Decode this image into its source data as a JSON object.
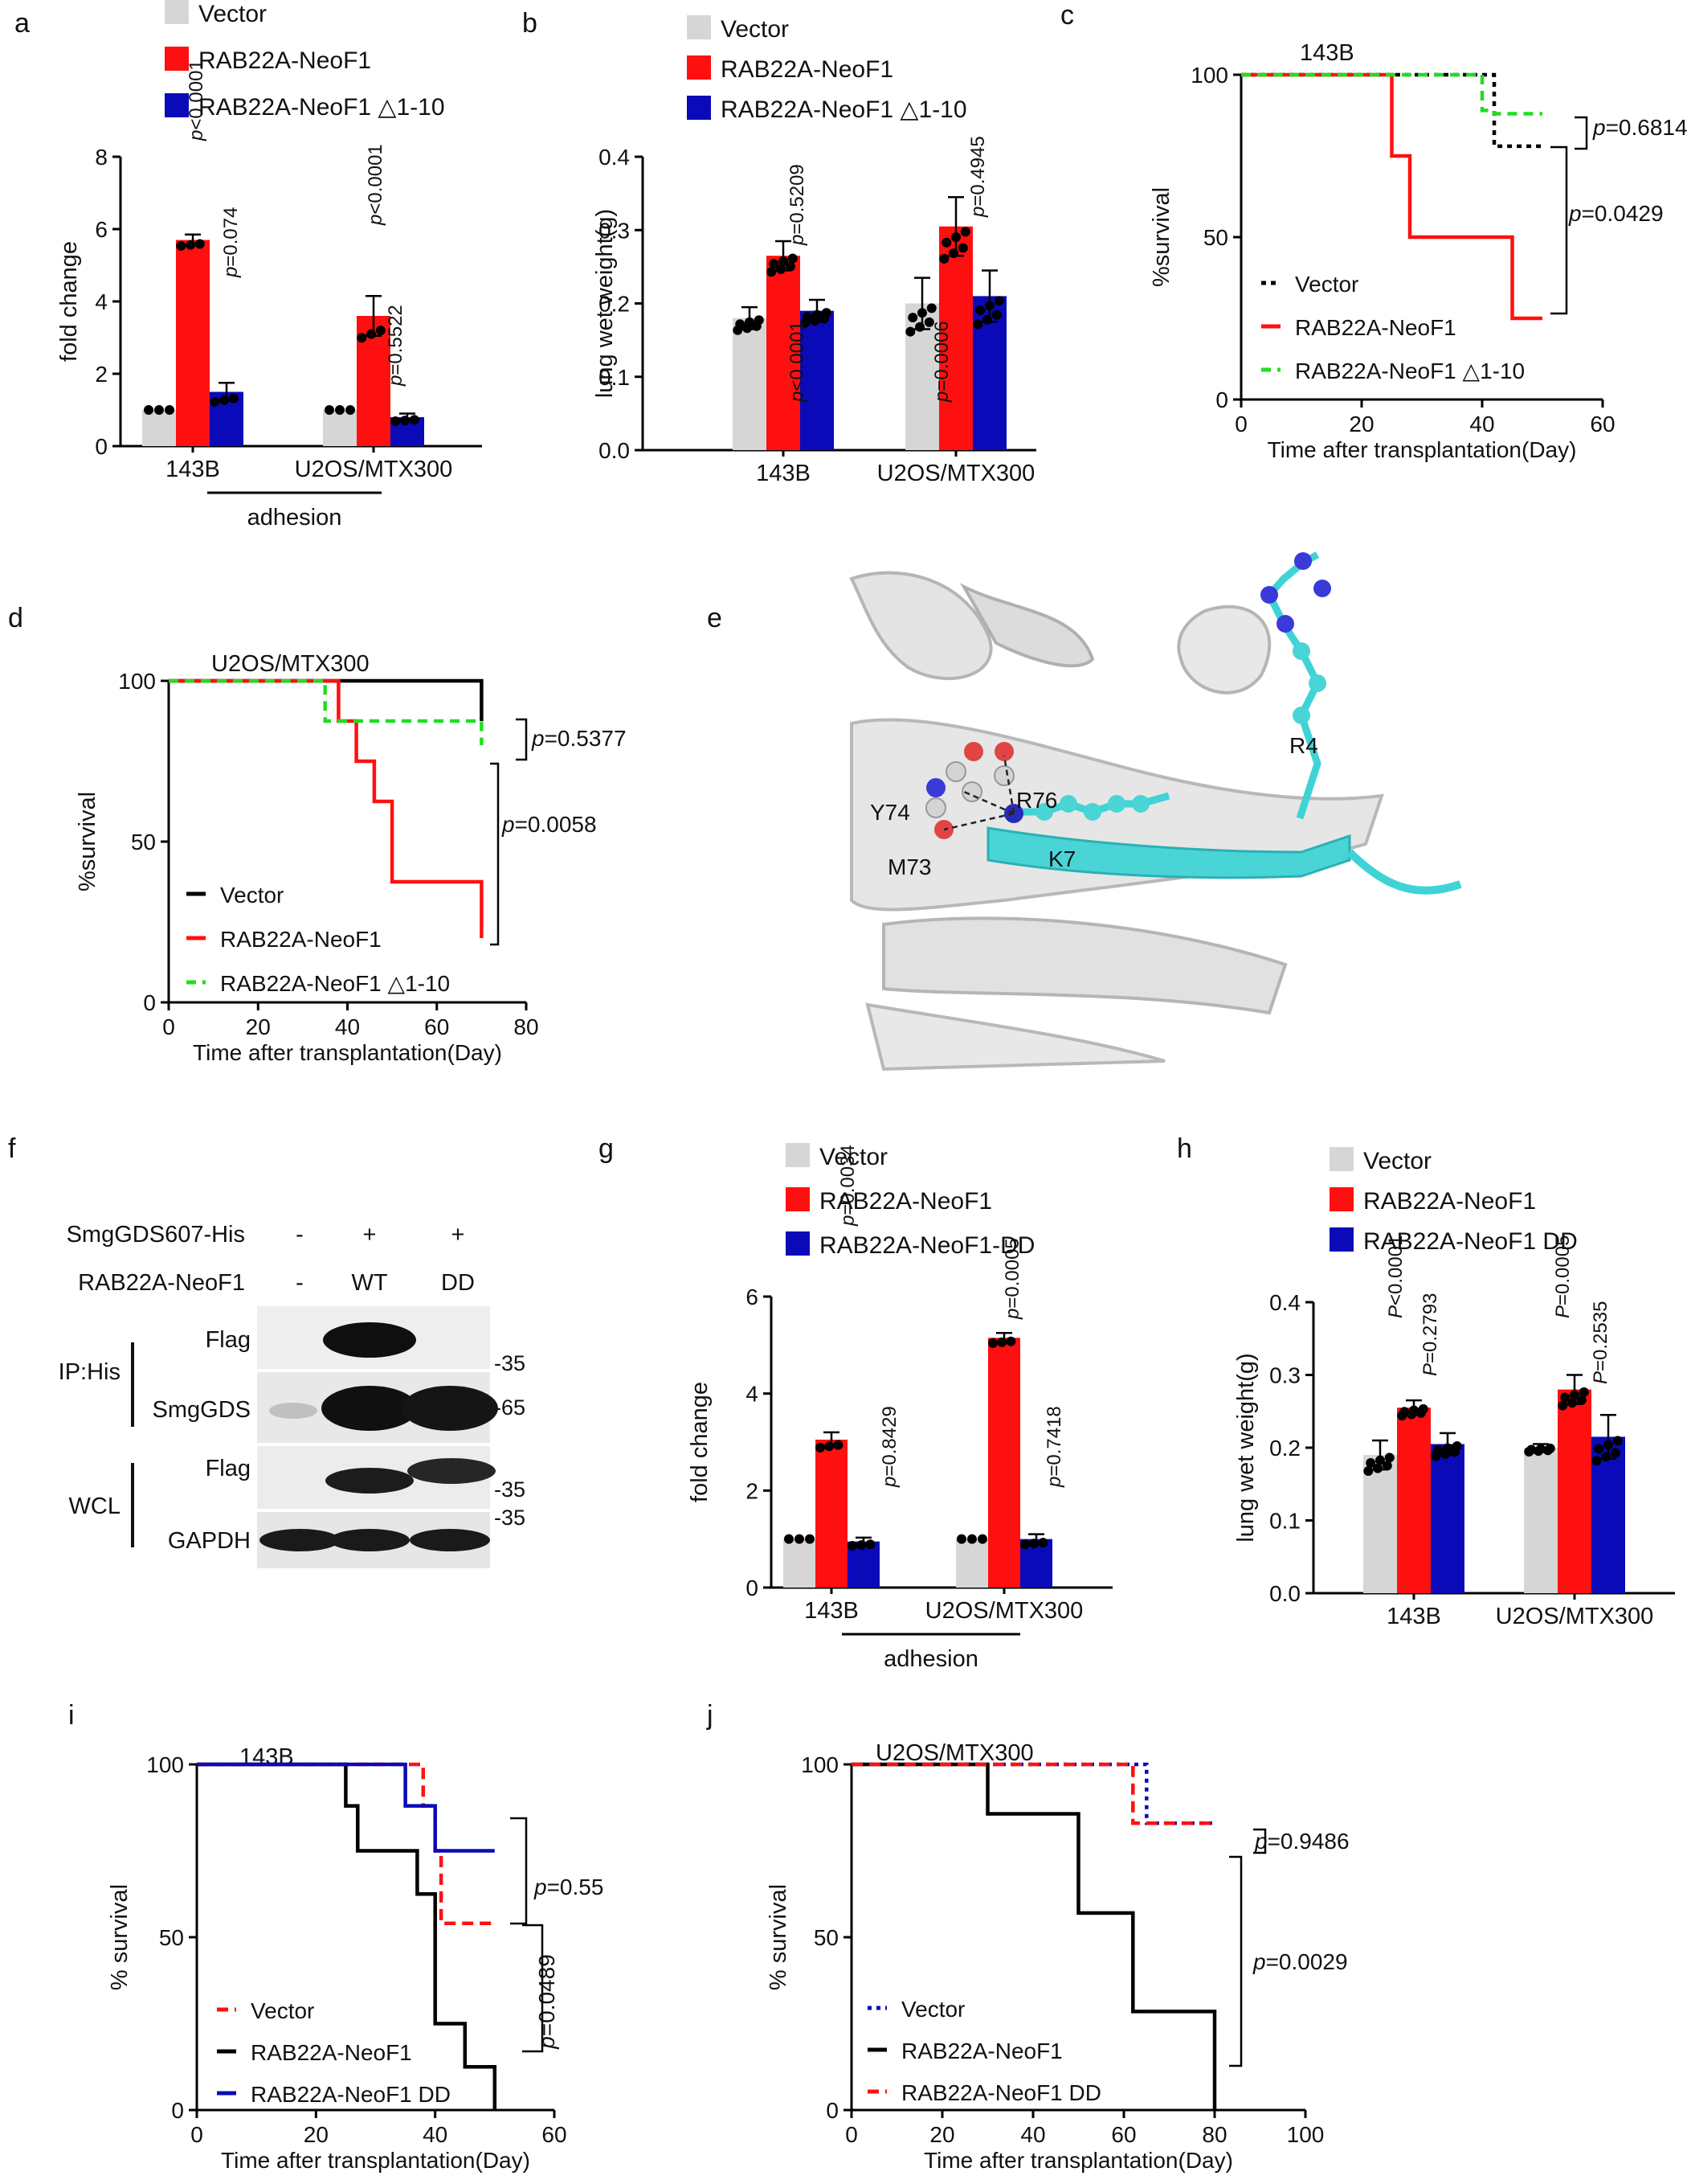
{
  "colors": {
    "vector": "#d6d6d6",
    "neo": "#ff1010",
    "mut": "#0a0ab8",
    "green": "#22dd22",
    "cyan": "#3fd3d6",
    "black": "#000000"
  },
  "labels": {
    "a": "a",
    "b": "b",
    "c": "c",
    "d": "d",
    "e": "e",
    "f": "f",
    "g": "g",
    "h": "h",
    "i": "i",
    "j": "j"
  },
  "legend_abh": [
    "Vector",
    "RAB22A-NeoF1",
    "RAB22A-NeoF1 △1-10"
  ],
  "legend_cd": [
    "Vector",
    "RAB22A-NeoF1",
    "RAB22A-NeoF1 △1-10"
  ],
  "legend_g": [
    "Vector",
    "RAB22A-NeoF1",
    "RAB22A-NeoF1-DD"
  ],
  "legend_h": [
    "Vector",
    "RAB22A-NeoF1",
    "RAB22A-NeoF1 DD"
  ],
  "legend_i": [
    "Vector",
    "RAB22A-NeoF1",
    "RAB22A-NeoF1 DD"
  ],
  "legend_j": [
    "Vector",
    "RAB22A-NeoF1",
    "RAB22A-NeoF1 DD"
  ],
  "chart_data": [
    {
      "id": "a",
      "type": "bar",
      "ylabel": "fold change",
      "ylim": [
        0,
        8
      ],
      "yticks": [
        "0",
        "2",
        "4",
        "6",
        "8"
      ],
      "categories": [
        "143B",
        "U2OS/MTX300"
      ],
      "group_label": "adhesion",
      "series": [
        {
          "name": "Vector",
          "values": [
            1,
            1
          ],
          "err": [
            0,
            0
          ]
        },
        {
          "name": "RAB22A-NeoF1",
          "values": [
            5.7,
            3.6
          ],
          "err": [
            0.15,
            0.55
          ]
        },
        {
          "name": "RAB22A-NeoF1 △1-10",
          "values": [
            1.5,
            0.8
          ],
          "err": [
            0.25,
            0.1
          ]
        }
      ],
      "pvals": [
        "p<0.0001",
        "p=0.074",
        "p<0.0001",
        "p=0.5522"
      ]
    },
    {
      "id": "b",
      "type": "bar",
      "ylabel": "lung wet weight(g)",
      "ylim": [
        0,
        0.4
      ],
      "yticks": [
        "0.0",
        "0.1",
        "0.2",
        "0.3",
        "0.4"
      ],
      "categories": [
        "143B",
        "U2OS/MTX300"
      ],
      "series": [
        {
          "name": "Vector",
          "values": [
            0.18,
            0.2
          ],
          "err": [
            0.015,
            0.035
          ]
        },
        {
          "name": "RAB22A-NeoF1",
          "values": [
            0.265,
            0.305
          ],
          "err": [
            0.02,
            0.04
          ]
        },
        {
          "name": "RAB22A-NeoF1 △1-10",
          "values": [
            0.19,
            0.21
          ],
          "err": [
            0.015,
            0.035
          ]
        }
      ],
      "pvals": [
        "p<0.0001",
        "p=0.5209",
        "p=0.0006",
        "p=0.4945"
      ]
    },
    {
      "id": "c",
      "type": "line",
      "title": "143B",
      "xlabel": "Time after transplantation(Day)",
      "ylabel": "%survival",
      "xlim": [
        0,
        60
      ],
      "ylim": [
        0,
        100
      ],
      "xticks": [
        "0",
        "20",
        "40",
        "60"
      ],
      "yticks": [
        "0",
        "50",
        "100"
      ],
      "series": [
        {
          "name": "Vector",
          "steps": [
            [
              0,
              100
            ],
            [
              42,
              100
            ],
            [
              42,
              78
            ],
            [
              50,
              78
            ]
          ]
        },
        {
          "name": "RAB22A-NeoF1",
          "steps": [
            [
              0,
              100
            ],
            [
              25,
              100
            ],
            [
              25,
              75
            ],
            [
              28,
              75
            ],
            [
              28,
              50
            ],
            [
              45,
              50
            ],
            [
              45,
              25
            ],
            [
              50,
              25
            ]
          ]
        },
        {
          "name": "RAB22A-NeoF1 △1-10",
          "steps": [
            [
              0,
              100
            ],
            [
              40,
              100
            ],
            [
              40,
              89
            ],
            [
              42,
              89
            ],
            [
              42,
              88
            ],
            [
              50,
              88
            ]
          ]
        }
      ],
      "pvals": [
        "p=0.6814",
        "p=0.0429"
      ]
    },
    {
      "id": "d",
      "type": "line",
      "title": "U2OS/MTX300",
      "xlabel": "Time after transplantation(Day)",
      "ylabel": "%survival",
      "xlim": [
        0,
        80
      ],
      "ylim": [
        0,
        100
      ],
      "xticks": [
        "0",
        "20",
        "40",
        "60",
        "80"
      ],
      "yticks": [
        "0",
        "50",
        "100"
      ],
      "series": [
        {
          "name": "Vector",
          "steps": [
            [
              0,
              100
            ],
            [
              70,
              100
            ],
            [
              70,
              87.5
            ],
            [
              70,
              87.5
            ]
          ]
        },
        {
          "name": "RAB22A-NeoF1",
          "steps": [
            [
              0,
              100
            ],
            [
              38,
              100
            ],
            [
              38,
              87.5
            ],
            [
              42,
              87.5
            ],
            [
              42,
              75
            ],
            [
              46,
              75
            ],
            [
              46,
              62.5
            ],
            [
              50,
              62.5
            ],
            [
              50,
              37.5
            ],
            [
              70,
              37.5
            ],
            [
              70,
              20
            ]
          ]
        },
        {
          "name": "RAB22A-NeoF1 △1-10",
          "steps": [
            [
              0,
              100
            ],
            [
              35,
              100
            ],
            [
              35,
              87.5
            ],
            [
              70,
              87.5
            ],
            [
              70,
              80
            ]
          ]
        }
      ],
      "pvals": [
        "p=0.5377",
        "p=0.0058"
      ]
    },
    {
      "id": "g",
      "type": "bar",
      "ylabel": "fold change",
      "ylim": [
        0,
        6
      ],
      "yticks": [
        "0",
        "2",
        "4",
        "6"
      ],
      "categories": [
        "143B",
        "U2OS/MTX300"
      ],
      "group_label": "adhesion",
      "series": [
        {
          "name": "Vector",
          "values": [
            1,
            1
          ],
          "err": [
            0,
            0
          ]
        },
        {
          "name": "RAB22A-NeoF1",
          "values": [
            3.05,
            5.15
          ],
          "err": [
            0.15,
            0.1
          ]
        },
        {
          "name": "RAB22A-NeoF1-DD",
          "values": [
            0.95,
            1.0
          ],
          "err": [
            0.08,
            0.1
          ]
        }
      ],
      "pvals": [
        "p=0.0034",
        "p=0.8429",
        "p=0.0005",
        "p=0.7418"
      ]
    },
    {
      "id": "h",
      "type": "bar",
      "ylabel": "lung wet weight(g)",
      "ylim": [
        0,
        0.4
      ],
      "yticks": [
        "0.0",
        "0.1",
        "0.2",
        "0.3",
        "0.4"
      ],
      "categories": [
        "143B",
        "U2OS/MTX300"
      ],
      "series": [
        {
          "name": "Vector",
          "values": [
            0.19,
            0.2
          ],
          "err": [
            0.02,
            0.005
          ]
        },
        {
          "name": "RAB22A-NeoF1",
          "values": [
            0.255,
            0.28
          ],
          "err": [
            0.01,
            0.02
          ]
        },
        {
          "name": "RAB22A-NeoF1 DD",
          "values": [
            0.205,
            0.215
          ],
          "err": [
            0.015,
            0.03
          ]
        }
      ],
      "pvals": [
        "P<0.0001",
        "P=0.2793",
        "P=0.0005",
        "P=0.2535"
      ]
    },
    {
      "id": "i",
      "type": "line",
      "title": "143B",
      "xlabel": "Time after transplantation(Day)",
      "ylabel": "% survival",
      "xlim": [
        0,
        60
      ],
      "ylim": [
        0,
        100
      ],
      "xticks": [
        "0",
        "20",
        "40",
        "60"
      ],
      "yticks": [
        "0",
        "50",
        "100"
      ],
      "series": [
        {
          "name": "Vector",
          "steps": [
            [
              0,
              100
            ],
            [
              38,
              100
            ],
            [
              38,
              88
            ],
            [
              40,
              88
            ],
            [
              40,
              75
            ],
            [
              41,
              75
            ],
            [
              41,
              54
            ],
            [
              50,
              54
            ]
          ]
        },
        {
          "name": "RAB22A-NeoF1",
          "steps": [
            [
              0,
              100
            ],
            [
              25,
              100
            ],
            [
              25,
              88
            ],
            [
              27,
              88
            ],
            [
              27,
              75
            ],
            [
              37,
              75
            ],
            [
              37,
              62.5
            ],
            [
              40,
              62.5
            ],
            [
              40,
              25
            ],
            [
              45,
              25
            ],
            [
              45,
              12.5
            ],
            [
              50,
              12.5
            ],
            [
              50,
              0
            ]
          ]
        },
        {
          "name": "RAB22A-NeoF1 DD",
          "steps": [
            [
              0,
              100
            ],
            [
              35,
              100
            ],
            [
              35,
              88
            ],
            [
              40,
              88
            ],
            [
              40,
              75
            ],
            [
              50,
              75
            ]
          ]
        }
      ],
      "pvals": [
        "p=0.55",
        "p=0.0489"
      ]
    },
    {
      "id": "j",
      "type": "line",
      "title": "U2OS/MTX300",
      "xlabel": "Time after transplantation(Day)",
      "ylabel": "% survival",
      "xlim": [
        0,
        100
      ],
      "ylim": [
        0,
        100
      ],
      "xticks": [
        "0",
        "20",
        "40",
        "60",
        "80",
        "100"
      ],
      "yticks": [
        "0",
        "50",
        "100"
      ],
      "series": [
        {
          "name": "Vector",
          "steps": [
            [
              0,
              100
            ],
            [
              65,
              100
            ],
            [
              65,
              83
            ],
            [
              80,
              83
            ]
          ]
        },
        {
          "name": "RAB22A-NeoF1",
          "steps": [
            [
              0,
              100
            ],
            [
              30,
              100
            ],
            [
              30,
              85.7
            ],
            [
              50,
              85.7
            ],
            [
              50,
              57
            ],
            [
              62,
              57
            ],
            [
              62,
              28.5
            ],
            [
              80,
              28.5
            ],
            [
              80,
              0
            ]
          ]
        },
        {
          "name": "RAB22A-NeoF1 DD",
          "steps": [
            [
              0,
              100
            ],
            [
              62,
              100
            ],
            [
              62,
              83
            ],
            [
              80,
              83
            ]
          ]
        }
      ],
      "pvals": [
        "p=0.9486",
        "p=0.0029"
      ]
    }
  ],
  "panel_e": {
    "residues": [
      "R4",
      "R76",
      "Y74",
      "M73",
      "K7"
    ]
  },
  "panel_f": {
    "row1_label": "SmgGDS607-His",
    "row1_vals": [
      "-",
      "+",
      "+"
    ],
    "row2_label": "RAB22A-NeoF1",
    "row2_vals": [
      "-",
      "WT",
      "DD"
    ],
    "group1": "IP:His",
    "group2": "WCL",
    "blots": [
      "Flag",
      "SmgGDS",
      "Flag",
      "GAPDH"
    ],
    "markers": [
      "-35",
      "-65",
      "-35",
      "-35"
    ]
  }
}
